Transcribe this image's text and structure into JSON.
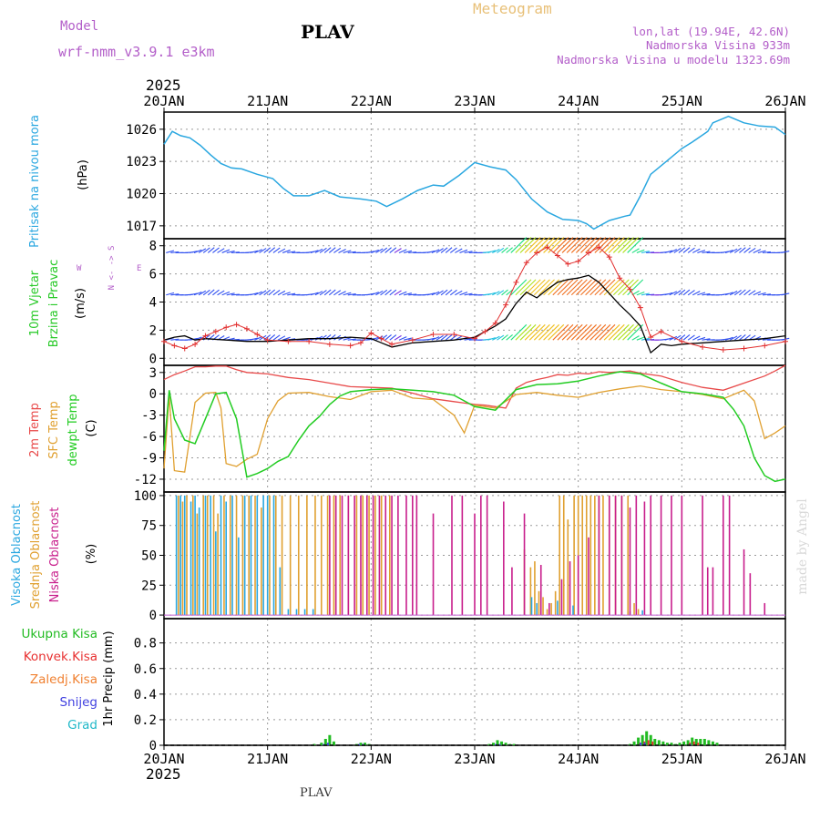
{
  "header": {
    "model_label": "Model",
    "model_name": "wrf-nmm_v3.9.1 e3km",
    "station": "PLAV",
    "product": "Meteogram",
    "lonlat": "lon,lat (19.94E, 42.6N)",
    "elevation": "Nadmorska Visina 933m",
    "model_elevation": "Nadmorska Visina u modelu 1323.69m",
    "footer_station": "PLAV",
    "watermark": "made by Angel"
  },
  "colors": {
    "pressure": "#2aa7e0",
    "wind_label": "#27c927",
    "tmp2m": "#e84a4a",
    "sfc": "#e0a030",
    "dew": "#22cc22",
    "high_cloud": "#2aa7e0",
    "mid_cloud": "#e0a030",
    "low_cloud": "#c81e8c",
    "purple_text": "#b35ec9",
    "meteogram": "#e8c078"
  },
  "chart_data": {
    "type": "line",
    "x_axis": {
      "unit": "days since 20JAN 2025 00Z",
      "range": [
        0,
        6
      ],
      "top_year": "2025",
      "bottom_year": "2025",
      "ticks": [
        "20JAN",
        "21JAN",
        "22JAN",
        "23JAN",
        "24JAN",
        "25JAN",
        "26JAN"
      ]
    },
    "panels": {
      "pressure": {
        "ylabel": "Pritisak na nivou mora",
        "unit": "(hPa)",
        "ylim": [
          1015.8,
          1027.6
        ],
        "ticks": [
          "1017",
          "1020",
          "1023",
          "1026"
        ],
        "series": {
          "x": [
            0,
            0.08,
            0.16,
            0.25,
            0.35,
            0.45,
            0.55,
            0.65,
            0.75,
            0.9,
            1.05,
            1.15,
            1.25,
            1.4,
            1.55,
            1.7,
            1.9,
            2.05,
            2.15,
            2.3,
            2.45,
            2.6,
            2.7,
            2.85,
            3.0,
            3.15,
            3.3,
            3.4,
            3.55,
            3.7,
            3.85,
            4.0,
            4.08,
            4.15,
            4.3,
            4.45,
            4.5,
            4.6,
            4.7,
            4.85,
            5.0,
            5.1,
            5.25,
            5.3,
            5.45,
            5.6,
            5.75,
            5.9,
            6.0
          ],
          "y": [
            1024.6,
            1025.8,
            1025.4,
            1025.2,
            1024.5,
            1023.6,
            1022.8,
            1022.4,
            1022.3,
            1021.8,
            1021.4,
            1020.5,
            1019.8,
            1019.8,
            1020.3,
            1019.7,
            1019.5,
            1019.3,
            1018.8,
            1019.5,
            1020.3,
            1020.8,
            1020.7,
            1021.7,
            1022.9,
            1022.5,
            1022.2,
            1021.3,
            1019.5,
            1018.3,
            1017.6,
            1017.5,
            1017.2,
            1016.7,
            1017.5,
            1017.9,
            1018.0,
            1019.8,
            1021.8,
            1023.0,
            1024.2,
            1024.8,
            1025.8,
            1026.6,
            1027.2,
            1026.6,
            1026.3,
            1026.2,
            1025.5
          ]
        }
      },
      "wind": {
        "ylabel1": "10m Vjetar",
        "ylabel2": "Brzina i Pravac",
        "unit": "(m/s)",
        "legend_vertical": "N <- -> S",
        "legend_w": "W",
        "legend_e": "E",
        "ylim": [
          -0.5,
          8.5
        ],
        "ticks": [
          "0",
          "2",
          "4",
          "6",
          "8"
        ],
        "barb_rows_y": [
          1.3,
          4.5,
          7.5
        ],
        "speed_line": {
          "x": [
            0,
            0.1,
            0.2,
            0.3,
            0.4,
            0.6,
            0.8,
            1.0,
            1.2,
            1.4,
            1.6,
            1.8,
            2.0,
            2.1,
            2.2,
            2.4,
            2.6,
            2.8,
            3.0,
            3.1,
            3.2,
            3.3,
            3.4,
            3.5,
            3.6,
            3.7,
            3.8,
            3.9,
            4.0,
            4.1,
            4.2,
            4.3,
            4.4,
            4.5,
            4.6,
            4.7,
            4.8,
            4.9,
            5.0,
            5.2,
            5.4,
            5.6,
            5.8,
            6.0
          ],
          "y": [
            1.3,
            1.5,
            1.6,
            1.3,
            1.4,
            1.3,
            1.2,
            1.2,
            1.3,
            1.4,
            1.4,
            1.5,
            1.4,
            1.1,
            0.8,
            1.1,
            1.2,
            1.3,
            1.5,
            1.9,
            2.3,
            2.8,
            3.9,
            4.7,
            4.3,
            4.9,
            5.4,
            5.6,
            5.7,
            5.9,
            5.4,
            4.6,
            3.8,
            3.1,
            2.3,
            0.4,
            1.0,
            0.9,
            1.0,
            1.1,
            1.2,
            1.3,
            1.4,
            1.6
          ]
        },
        "gust": {
          "x": [
            0,
            0.1,
            0.2,
            0.3,
            0.4,
            0.5,
            0.6,
            0.7,
            0.8,
            0.9,
            1.0,
            1.2,
            1.4,
            1.6,
            1.8,
            1.9,
            2.0,
            2.1,
            2.2,
            2.4,
            2.6,
            2.8,
            3.0,
            3.1,
            3.2,
            3.3,
            3.4,
            3.5,
            3.6,
            3.7,
            3.8,
            3.9,
            4.0,
            4.1,
            4.2,
            4.3,
            4.4,
            4.5,
            4.6,
            4.7,
            4.8,
            5.0,
            5.2,
            5.4,
            5.6,
            5.8,
            6.0
          ],
          "y": [
            1.2,
            0.9,
            0.7,
            1.0,
            1.6,
            1.9,
            2.2,
            2.4,
            2.1,
            1.7,
            1.3,
            1.2,
            1.2,
            1.0,
            0.9,
            1.1,
            1.8,
            1.4,
            1.0,
            1.3,
            1.7,
            1.7,
            1.4,
            1.9,
            2.5,
            3.8,
            5.4,
            6.8,
            7.5,
            7.9,
            7.3,
            6.7,
            6.9,
            7.5,
            7.9,
            7.2,
            5.7,
            4.9,
            3.6,
            1.5,
            1.9,
            1.2,
            0.8,
            0.6,
            0.7,
            0.9,
            1.2
          ]
        }
      },
      "temperature": {
        "ylabel1": "2m Temp",
        "ylabel2": "SFC Temp",
        "ylabel3": "dewpt Temp",
        "unit": "(C)",
        "ylim": [
          -13.8,
          4.0
        ],
        "ticks": [
          "3",
          "0",
          "-3",
          "-6",
          "-9",
          "-12"
        ],
        "t2m": {
          "x": [
            0,
            0.1,
            0.2,
            0.3,
            0.4,
            0.5,
            0.6,
            0.7,
            0.8,
            1.0,
            1.2,
            1.4,
            1.6,
            1.8,
            2.0,
            2.2,
            2.4,
            2.6,
            2.8,
            3.0,
            3.1,
            3.2,
            3.3,
            3.4,
            3.5,
            3.6,
            3.7,
            3.8,
            3.9,
            4.0,
            4.1,
            4.2,
            4.3,
            4.4,
            4.5,
            4.6,
            4.8,
            5.0,
            5.2,
            5.4,
            5.6,
            5.8,
            5.9,
            6.0
          ],
          "y": [
            2.0,
            2.7,
            3.2,
            3.8,
            3.8,
            3.9,
            3.9,
            3.4,
            3.0,
            2.8,
            2.3,
            2.0,
            1.5,
            1.0,
            0.9,
            0.8,
            0.1,
            -0.7,
            -1.1,
            -1.5,
            -1.6,
            -1.8,
            -2.0,
            0.8,
            1.6,
            2.0,
            2.3,
            2.7,
            2.6,
            2.9,
            2.8,
            3.1,
            3.0,
            3.1,
            3.2,
            2.9,
            2.5,
            1.6,
            0.9,
            0.5,
            1.5,
            2.5,
            3.2,
            4.0
          ]
        },
        "sfc": {
          "x": [
            0,
            0.05,
            0.1,
            0.2,
            0.3,
            0.4,
            0.5,
            0.55,
            0.6,
            0.7,
            0.8,
            0.9,
            1.0,
            1.1,
            1.2,
            1.4,
            1.6,
            1.8,
            2.0,
            2.2,
            2.4,
            2.6,
            2.8,
            2.9,
            3.0,
            3.2,
            3.4,
            3.6,
            3.8,
            4.0,
            4.2,
            4.4,
            4.6,
            4.8,
            5.0,
            5.2,
            5.4,
            5.6,
            5.7,
            5.8,
            5.9,
            6.0
          ],
          "y": [
            -10.5,
            -0.3,
            -10.8,
            -11.0,
            -1.2,
            0.1,
            0.2,
            -2.0,
            -9.8,
            -10.2,
            -9.2,
            -8.5,
            -3.5,
            -1.0,
            0.1,
            0.2,
            -0.4,
            -0.8,
            0.3,
            0.5,
            -0.6,
            -0.8,
            -3.0,
            -5.5,
            -1.6,
            -2.0,
            -0.1,
            0.2,
            -0.2,
            -0.5,
            0.2,
            0.7,
            1.1,
            0.6,
            0.3,
            -0.1,
            -0.7,
            0.5,
            -1.0,
            -6.3,
            -5.5,
            -4.5
          ]
        },
        "dew": {
          "x": [
            0,
            0.05,
            0.1,
            0.2,
            0.3,
            0.4,
            0.5,
            0.6,
            0.7,
            0.8,
            0.9,
            1.0,
            1.1,
            1.2,
            1.3,
            1.4,
            1.5,
            1.6,
            1.7,
            1.8,
            2.0,
            2.2,
            2.4,
            2.6,
            2.8,
            3.0,
            3.2,
            3.4,
            3.6,
            3.8,
            4.0,
            4.2,
            4.4,
            4.6,
            4.8,
            5.0,
            5.2,
            5.4,
            5.5,
            5.6,
            5.7,
            5.8,
            5.9,
            6.0
          ],
          "y": [
            -8.0,
            0.5,
            -3.5,
            -6.5,
            -7.0,
            -3.5,
            0.0,
            0.2,
            -3.5,
            -11.7,
            -11.2,
            -10.5,
            -9.5,
            -8.8,
            -6.5,
            -4.5,
            -3.2,
            -1.5,
            -0.3,
            0.3,
            0.6,
            0.7,
            0.5,
            0.3,
            -0.2,
            -1.8,
            -2.3,
            0.6,
            1.3,
            1.4,
            1.8,
            2.5,
            3.1,
            2.8,
            1.5,
            0.3,
            0.0,
            -0.5,
            -2.2,
            -4.5,
            -9.0,
            -11.5,
            -12.3,
            -12.0
          ]
        }
      },
      "cloud": {
        "ylabel1": "Visoka Oblacnost",
        "ylabel2": "Srednja Oblacnost",
        "ylabel3": "Niska Oblacnost",
        "unit": "(%)",
        "ylim": [
          -3,
          103
        ],
        "ticks": [
          "100",
          "75",
          "50",
          "25",
          "0"
        ],
        "high": {
          "x": [
            0.12,
            0.16,
            0.2,
            0.26,
            0.3,
            0.34,
            0.4,
            0.45,
            0.5,
            0.55,
            0.6,
            0.66,
            0.72,
            0.78,
            0.84,
            0.9,
            0.96,
            1.0,
            1.06,
            1.12,
            1.2,
            1.28,
            1.36,
            1.44,
            3.55,
            3.6,
            3.8,
            3.95,
            4.5,
            4.62
          ],
          "y": [
            100,
            100,
            100,
            95,
            100,
            90,
            100,
            100,
            70,
            100,
            95,
            100,
            65,
            100,
            100,
            100,
            100,
            100,
            100,
            40,
            5,
            5,
            5,
            5,
            15,
            10,
            12,
            8,
            3,
            4
          ]
        },
        "mid": {
          "x": [
            0.14,
            0.18,
            0.22,
            0.28,
            0.32,
            0.38,
            0.42,
            0.48,
            0.52,
            0.58,
            0.64,
            0.7,
            0.76,
            0.82,
            0.88,
            0.94,
            1.02,
            1.08,
            1.14,
            1.22,
            1.3,
            1.38,
            1.46,
            1.52,
            1.58,
            1.64,
            1.7,
            1.78,
            1.86,
            1.92,
            1.98,
            2.04,
            2.1,
            2.18,
            3.48,
            3.54,
            3.58,
            3.62,
            3.66,
            3.7,
            3.74,
            3.78,
            3.82,
            3.86,
            3.9,
            3.96,
            4.0,
            4.04,
            4.08,
            4.12,
            4.16,
            4.2,
            4.24,
            4.3,
            4.36,
            4.42,
            4.48,
            4.54,
            4.58
          ],
          "y": [
            100,
            95,
            100,
            100,
            85,
            100,
            100,
            100,
            85,
            100,
            100,
            100,
            100,
            100,
            100,
            90,
            100,
            100,
            100,
            100,
            100,
            100,
            100,
            100,
            100,
            100,
            100,
            100,
            100,
            100,
            100,
            100,
            100,
            100,
            55,
            40,
            45,
            20,
            15,
            5,
            10,
            20,
            100,
            100,
            80,
            100,
            100,
            100,
            100,
            100,
            100,
            100,
            100,
            100,
            100,
            100,
            100,
            10,
            5
          ]
        },
        "low": {
          "x": [
            1.6,
            1.66,
            1.72,
            1.78,
            1.84,
            1.9,
            1.96,
            2.02,
            2.08,
            2.14,
            2.2,
            2.26,
            2.34,
            2.4,
            2.44,
            2.6,
            2.78,
            2.88,
            3.0,
            3.06,
            3.12,
            3.28,
            3.36,
            3.48,
            3.64,
            3.72,
            3.84,
            3.92,
            4.0,
            4.1,
            4.2,
            4.3,
            4.36,
            4.42,
            4.5,
            4.56,
            4.64,
            4.7,
            4.8,
            4.9,
            5.0,
            5.2,
            5.25,
            5.3,
            5.4,
            5.46,
            5.6,
            5.66,
            5.8
          ],
          "y": [
            100,
            100,
            100,
            100,
            100,
            100,
            100,
            100,
            100,
            100,
            100,
            100,
            100,
            100,
            100,
            85,
            100,
            100,
            85,
            100,
            100,
            95,
            40,
            85,
            42,
            10,
            30,
            45,
            50,
            65,
            100,
            100,
            100,
            100,
            90,
            100,
            95,
            100,
            100,
            100,
            100,
            100,
            40,
            40,
            100,
            100,
            55,
            35,
            10
          ]
        }
      },
      "precip": {
        "ylabel": "1hr Precip (mm)",
        "legend": [
          "Ukupna Kisa",
          "Konvek.Kisa",
          "Zaledj.Kisa",
          "Snijeg",
          "Grad"
        ],
        "ylim": [
          0,
          0.99
        ],
        "ticks": [
          "0.8",
          "0.6",
          "0.4",
          "0.2",
          "0"
        ],
        "total": {
          "x": [
            1.45,
            1.52,
            1.56,
            1.6,
            1.64,
            1.86,
            1.9,
            1.94,
            1.98,
            3.14,
            3.18,
            3.22,
            3.26,
            3.3,
            3.34,
            3.38,
            4.5,
            4.54,
            4.58,
            4.62,
            4.66,
            4.7,
            4.74,
            4.78,
            4.82,
            4.86,
            4.9,
            4.94,
            4.98,
            5.02,
            5.06,
            5.1,
            5.14,
            5.18,
            5.22,
            5.26,
            5.3,
            5.34
          ],
          "y": [
            0.01,
            0.02,
            0.05,
            0.08,
            0.03,
            0.01,
            0.02,
            0.02,
            0.01,
            0.01,
            0.02,
            0.04,
            0.03,
            0.02,
            0.01,
            0.01,
            0.01,
            0.03,
            0.06,
            0.08,
            0.11,
            0.08,
            0.05,
            0.04,
            0.03,
            0.02,
            0.02,
            0.01,
            0.02,
            0.03,
            0.04,
            0.06,
            0.05,
            0.05,
            0.05,
            0.04,
            0.03,
            0.02
          ]
        },
        "conv": {
          "x": [
            4.58,
            4.62,
            4.66,
            4.7,
            5.06,
            5.1,
            5.14
          ],
          "y": [
            0.02,
            0.03,
            0.04,
            0.03,
            0.02,
            0.03,
            0.02
          ]
        },
        "snow": {
          "x": [
            1.56,
            1.6,
            1.9,
            1.94,
            3.22,
            3.26,
            4.62,
            4.66,
            5.1
          ],
          "y": [
            0.01,
            0.02,
            0.01,
            0.01,
            0.01,
            0.01,
            0.02,
            0.02,
            0.01
          ]
        }
      }
    }
  }
}
